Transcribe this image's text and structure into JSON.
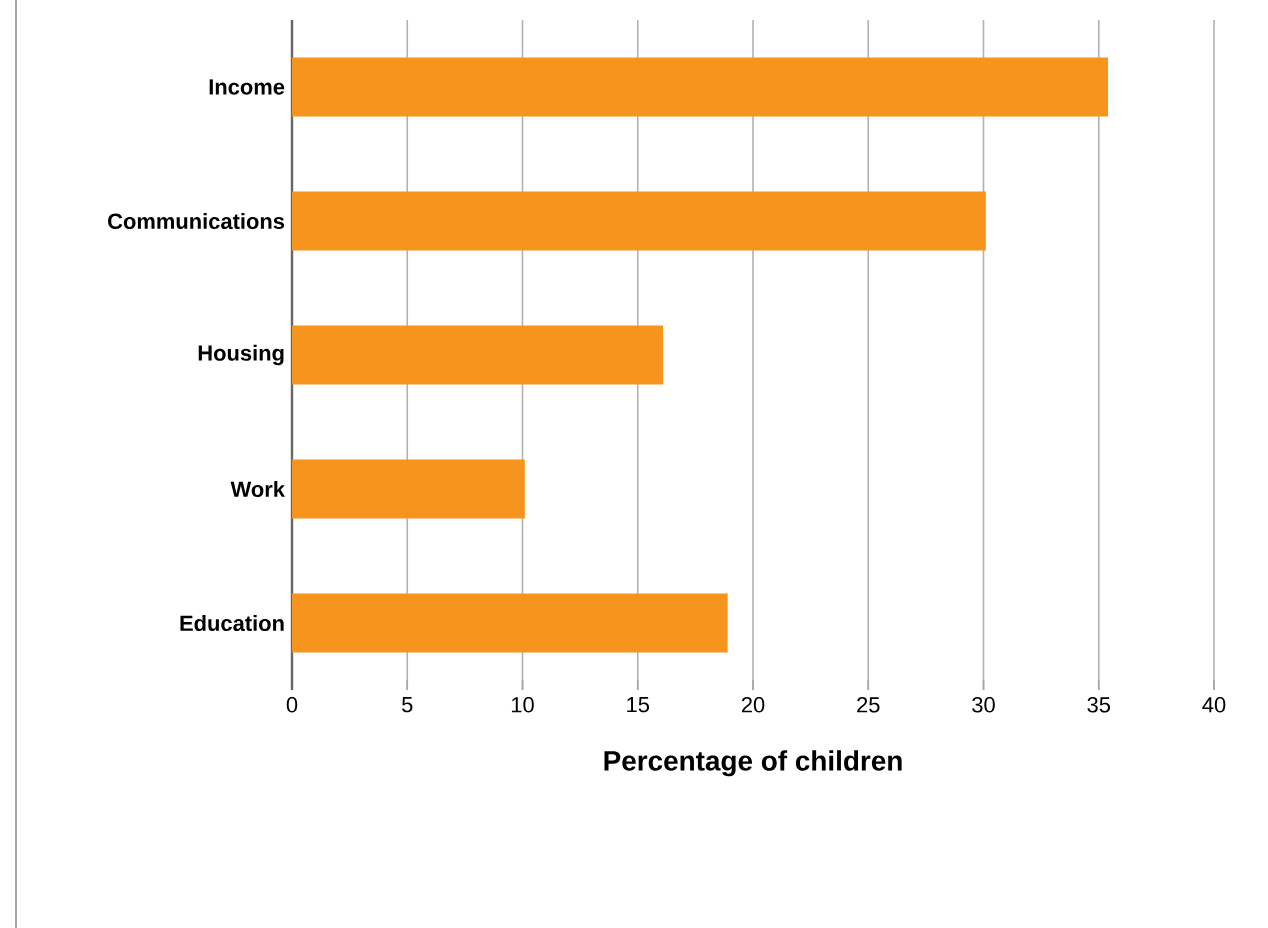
{
  "chart_data": {
    "type": "bar",
    "orientation": "horizontal",
    "xlabel": "Percentage of children",
    "categories": [
      "Income",
      "Communications",
      "Housing",
      "Work",
      "Education"
    ],
    "values": [
      35.4,
      30.1,
      16.1,
      10.1,
      18.9
    ],
    "color": "#f7941d",
    "xlim": [
      0,
      40
    ],
    "xticks": [
      0,
      5,
      10,
      15,
      20,
      25,
      30,
      35,
      40
    ],
    "grid": "x"
  }
}
